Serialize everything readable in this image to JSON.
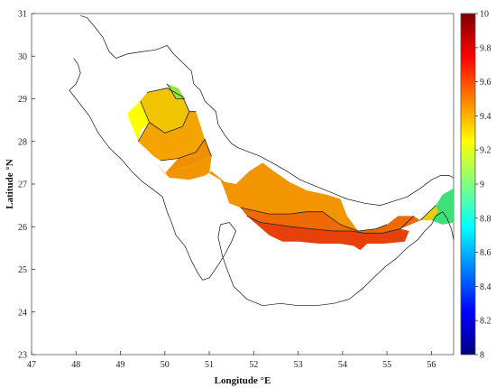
{
  "chart_data": {
    "type": "heatmap",
    "xlabel": "Longitude °E",
    "ylabel": "Latitude °N",
    "xlim": [
      47,
      56.5
    ],
    "ylim": [
      23,
      31
    ],
    "x_ticks": [
      "47",
      "48",
      "49",
      "50",
      "51",
      "52",
      "53",
      "54",
      "55",
      "56"
    ],
    "y_ticks": [
      "23",
      "24",
      "25",
      "26",
      "27",
      "28",
      "29",
      "30",
      "31"
    ],
    "colorbar": {
      "min": 8,
      "max": 10,
      "ticks": [
        "8",
        "8.2",
        "8.4",
        "8.6",
        "8.8",
        "9",
        "9.2",
        "9.4",
        "9.6",
        "9.8",
        "10"
      ]
    },
    "grid": false,
    "regions": [
      {
        "value": 9.3,
        "color": "#ffff00",
        "points": [
          [
            49.15,
            28.65
          ],
          [
            49.45,
            28.95
          ],
          [
            49.6,
            29.15
          ],
          [
            49.65,
            28.45
          ],
          [
            49.45,
            28.25
          ],
          [
            49.4,
            28.0
          ]
        ]
      },
      {
        "value": 9.38,
        "color": "#f0c400",
        "points": [
          [
            49.45,
            28.95
          ],
          [
            49.6,
            29.15
          ],
          [
            50.05,
            29.25
          ],
          [
            50.4,
            29.05
          ],
          [
            50.55,
            28.7
          ],
          [
            50.4,
            28.35
          ],
          [
            50.0,
            28.2
          ],
          [
            49.65,
            28.45
          ]
        ]
      },
      {
        "value": 9.18,
        "color": "#8de83a",
        "points": [
          [
            50.05,
            29.35
          ],
          [
            50.3,
            29.25
          ],
          [
            50.45,
            29.0
          ],
          [
            50.25,
            29.0
          ]
        ]
      },
      {
        "value": 9.46,
        "color": "#f5a300",
        "points": [
          [
            49.4,
            28.0
          ],
          [
            49.65,
            28.45
          ],
          [
            50.0,
            28.2
          ],
          [
            50.4,
            28.35
          ],
          [
            50.55,
            28.7
          ],
          [
            50.7,
            28.7
          ],
          [
            50.9,
            28.05
          ],
          [
            50.7,
            27.75
          ],
          [
            50.3,
            27.6
          ],
          [
            49.9,
            27.55
          ],
          [
            49.75,
            27.65
          ]
        ]
      },
      {
        "value": 9.52,
        "color": "#f08f00",
        "points": [
          [
            50.3,
            27.6
          ],
          [
            50.7,
            27.75
          ],
          [
            50.9,
            28.05
          ],
          [
            51.05,
            27.65
          ],
          [
            50.6,
            27.45
          ],
          [
            50.0,
            27.25
          ]
        ]
      },
      {
        "value": 9.5,
        "color": "#f39500",
        "points": [
          [
            49.75,
            27.55
          ],
          [
            50.0,
            27.25
          ],
          [
            50.6,
            27.45
          ],
          [
            51.05,
            27.65
          ],
          [
            51.0,
            27.25
          ],
          [
            51.25,
            27.1
          ],
          [
            51.35,
            26.85
          ],
          [
            51.45,
            26.55
          ],
          [
            51.7,
            26.45
          ],
          [
            52.35,
            26.3
          ],
          [
            52.8,
            26.3
          ],
          [
            53.2,
            26.35
          ],
          [
            53.55,
            26.35
          ],
          [
            53.95,
            26.05
          ],
          [
            54.35,
            25.9
          ],
          [
            54.1,
            26.25
          ],
          [
            53.95,
            26.65
          ],
          [
            53.65,
            26.75
          ],
          [
            53.2,
            26.85
          ],
          [
            52.8,
            27.05
          ],
          [
            52.45,
            27.3
          ],
          [
            52.2,
            27.5
          ],
          [
            51.9,
            27.3
          ],
          [
            51.6,
            27.0
          ],
          [
            51.35,
            27.05
          ],
          [
            51.05,
            27.3
          ],
          [
            50.9,
            27.2
          ],
          [
            50.55,
            27.1
          ],
          [
            50.1,
            27.15
          ]
        ]
      },
      {
        "value": 9.62,
        "color": "#ee6a00",
        "points": [
          [
            51.7,
            26.45
          ],
          [
            52.35,
            26.3
          ],
          [
            52.8,
            26.3
          ],
          [
            53.2,
            26.35
          ],
          [
            53.55,
            26.35
          ],
          [
            53.95,
            26.05
          ],
          [
            54.35,
            25.9
          ],
          [
            54.75,
            25.95
          ],
          [
            55.0,
            26.05
          ],
          [
            55.25,
            26.25
          ],
          [
            55.6,
            26.25
          ],
          [
            55.75,
            26.15
          ],
          [
            55.3,
            25.95
          ],
          [
            54.9,
            25.85
          ],
          [
            54.5,
            25.85
          ],
          [
            54.2,
            25.9
          ],
          [
            53.8,
            25.9
          ],
          [
            53.3,
            25.95
          ],
          [
            52.85,
            26.0
          ],
          [
            52.5,
            26.05
          ],
          [
            52.15,
            26.1
          ],
          [
            51.85,
            26.25
          ]
        ]
      },
      {
        "value": 9.72,
        "color": "#e8400a",
        "points": [
          [
            51.85,
            26.25
          ],
          [
            52.15,
            26.1
          ],
          [
            52.5,
            26.05
          ],
          [
            52.85,
            26.0
          ],
          [
            53.3,
            25.95
          ],
          [
            53.8,
            25.9
          ],
          [
            54.2,
            25.9
          ],
          [
            54.5,
            25.85
          ],
          [
            54.9,
            25.85
          ],
          [
            55.3,
            25.95
          ],
          [
            55.5,
            25.9
          ],
          [
            55.4,
            25.65
          ],
          [
            54.9,
            25.6
          ],
          [
            54.55,
            25.6
          ],
          [
            54.4,
            25.45
          ],
          [
            54.25,
            25.55
          ],
          [
            53.95,
            25.6
          ],
          [
            53.5,
            25.6
          ],
          [
            53.0,
            25.65
          ],
          [
            52.65,
            25.65
          ],
          [
            52.35,
            25.8
          ]
        ]
      },
      {
        "value": 9.3,
        "color": "#e8d000",
        "points": [
          [
            55.75,
            26.15
          ],
          [
            55.9,
            26.3
          ],
          [
            56.1,
            26.5
          ],
          [
            56.15,
            26.35
          ],
          [
            56.0,
            26.15
          ]
        ]
      },
      {
        "value": 9.1,
        "color": "#3fe07a",
        "points": [
          [
            56.0,
            26.15
          ],
          [
            56.15,
            26.35
          ],
          [
            56.1,
            26.5
          ],
          [
            56.25,
            26.75
          ],
          [
            56.5,
            26.9
          ],
          [
            56.5,
            26.1
          ],
          [
            56.25,
            26.05
          ]
        ]
      }
    ],
    "contours": [
      [
        [
          49.45,
          28.95
        ],
        [
          49.65,
          28.45
        ],
        [
          49.4,
          28.0
        ]
      ],
      [
        [
          49.6,
          29.15
        ],
        [
          50.05,
          29.25
        ],
        [
          50.4,
          29.05
        ],
        [
          50.55,
          28.7
        ]
      ],
      [
        [
          49.65,
          28.45
        ],
        [
          50.0,
          28.2
        ],
        [
          50.4,
          28.35
        ],
        [
          50.55,
          28.7
        ],
        [
          50.7,
          28.7
        ]
      ],
      [
        [
          49.9,
          27.55
        ],
        [
          50.3,
          27.6
        ],
        [
          50.7,
          27.75
        ],
        [
          50.9,
          28.05
        ],
        [
          51.05,
          27.65
        ]
      ],
      [
        [
          51.85,
          26.25
        ],
        [
          52.15,
          26.1
        ],
        [
          52.5,
          26.05
        ],
        [
          52.85,
          26.0
        ],
        [
          53.3,
          25.95
        ],
        [
          53.8,
          25.9
        ],
        [
          54.2,
          25.9
        ],
        [
          54.5,
          25.85
        ],
        [
          54.9,
          25.85
        ],
        [
          55.3,
          25.95
        ],
        [
          55.6,
          26.25
        ]
      ],
      [
        [
          51.7,
          26.45
        ],
        [
          52.35,
          26.3
        ],
        [
          52.8,
          26.3
        ],
        [
          53.2,
          26.35
        ],
        [
          53.55,
          26.35
        ],
        [
          53.95,
          26.05
        ],
        [
          54.35,
          25.9
        ],
        [
          54.75,
          25.95
        ],
        [
          55.0,
          26.05
        ]
      ],
      [
        [
          50.05,
          29.35
        ],
        [
          50.25,
          29.0
        ],
        [
          50.45,
          29.0
        ]
      ],
      [
        [
          55.75,
          26.15
        ],
        [
          55.9,
          26.3
        ],
        [
          56.1,
          26.5
        ]
      ]
    ],
    "coastlines": [
      [
        [
          48.1,
          30.95
        ],
        [
          48.25,
          30.9
        ],
        [
          48.45,
          30.65
        ],
        [
          48.6,
          30.45
        ],
        [
          48.75,
          30.1
        ],
        [
          48.9,
          29.95
        ],
        [
          49.15,
          30.05
        ],
        [
          49.45,
          30.1
        ],
        [
          49.8,
          30.15
        ],
        [
          50.05,
          30.25
        ],
        [
          50.2,
          30.05
        ],
        [
          50.35,
          29.9
        ],
        [
          50.6,
          29.65
        ],
        [
          50.65,
          29.35
        ],
        [
          50.8,
          29.2
        ],
        [
          50.9,
          28.95
        ],
        [
          51.0,
          28.85
        ],
        [
          51.15,
          28.7
        ],
        [
          51.2,
          28.4
        ],
        [
          51.35,
          28.15
        ],
        [
          51.5,
          27.95
        ],
        [
          51.65,
          27.85
        ],
        [
          51.9,
          27.75
        ],
        [
          52.15,
          27.65
        ],
        [
          52.5,
          27.45
        ],
        [
          52.75,
          27.3
        ],
        [
          53.05,
          27.1
        ],
        [
          53.4,
          26.95
        ],
        [
          53.75,
          26.8
        ],
        [
          54.1,
          26.65
        ],
        [
          54.5,
          26.55
        ],
        [
          54.85,
          26.5
        ],
        [
          55.15,
          26.6
        ],
        [
          55.45,
          26.7
        ],
        [
          55.75,
          26.9
        ],
        [
          56.0,
          27.1
        ],
        [
          56.2,
          27.2
        ],
        [
          56.4,
          27.2
        ],
        [
          56.5,
          27.15
        ]
      ],
      [
        [
          47.95,
          29.95
        ],
        [
          48.05,
          29.8
        ],
        [
          48.1,
          29.6
        ],
        [
          48.0,
          29.35
        ],
        [
          47.85,
          29.2
        ],
        [
          48.0,
          29.0
        ],
        [
          48.3,
          28.6
        ],
        [
          48.5,
          28.2
        ],
        [
          48.75,
          27.85
        ],
        [
          49.05,
          27.55
        ],
        [
          49.25,
          27.3
        ],
        [
          49.5,
          27.05
        ],
        [
          49.7,
          26.9
        ],
        [
          49.95,
          26.7
        ],
        [
          50.05,
          26.35
        ],
        [
          50.15,
          26.1
        ],
        [
          50.25,
          25.8
        ],
        [
          50.45,
          25.55
        ],
        [
          50.6,
          25.2
        ],
        [
          50.75,
          24.9
        ],
        [
          50.85,
          24.75
        ],
        [
          51.0,
          24.8
        ],
        [
          51.2,
          25.1
        ],
        [
          51.35,
          25.35
        ],
        [
          51.5,
          25.65
        ],
        [
          51.6,
          25.9
        ],
        [
          51.45,
          26.1
        ],
        [
          51.25,
          26.05
        ],
        [
          51.2,
          25.75
        ],
        [
          51.3,
          25.3
        ],
        [
          51.4,
          25.0
        ],
        [
          51.55,
          24.6
        ],
        [
          51.85,
          24.3
        ],
        [
          52.2,
          24.15
        ],
        [
          52.6,
          24.2
        ],
        [
          53.0,
          24.15
        ],
        [
          53.4,
          24.15
        ],
        [
          53.8,
          24.2
        ],
        [
          54.15,
          24.3
        ],
        [
          54.45,
          24.55
        ],
        [
          54.7,
          24.8
        ],
        [
          54.95,
          25.05
        ],
        [
          55.2,
          25.25
        ],
        [
          55.45,
          25.5
        ],
        [
          55.7,
          25.7
        ],
        [
          55.85,
          25.9
        ],
        [
          56.0,
          26.05
        ],
        [
          56.1,
          26.25
        ],
        [
          56.25,
          26.35
        ],
        [
          56.35,
          26.2
        ],
        [
          56.45,
          25.95
        ],
        [
          56.5,
          25.7
        ]
      ]
    ]
  }
}
